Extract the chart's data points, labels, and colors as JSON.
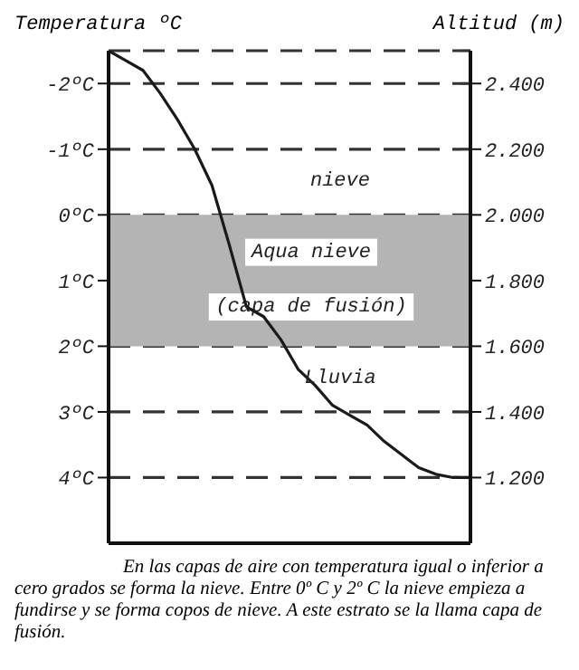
{
  "chart_data": {
    "type": "line",
    "ylabel": "Altitud (m)",
    "y2label": "Temperatura ºC",
    "categories": [
      null,
      null,
      null,
      null,
      null,
      null,
      null,
      null,
      null,
      null,
      null,
      null,
      null,
      null,
      null,
      null,
      null,
      null,
      null,
      null,
      null,
      null
    ],
    "series": [
      {
        "color": "#1a1a1a",
        "values": [
          2500,
          2470,
          2440,
          2370,
          2290,
          2200,
          2090,
          1910,
          1720,
          1690,
          1620,
          1530,
          1480,
          1420,
          1390,
          1360,
          1310,
          1270,
          1230,
          1210,
          1200,
          1200
        ]
      }
    ],
    "ylim": [
      1000,
      2500
    ],
    "yticks": [
      {
        "value": 1200,
        "label": "1.200"
      },
      {
        "value": 1400,
        "label": "1.400"
      },
      {
        "value": 1600,
        "label": "1.600"
      },
      {
        "value": 1800,
        "label": "1.800"
      },
      {
        "value": 2000,
        "label": "2.000"
      },
      {
        "value": 2200,
        "label": "2.200"
      },
      {
        "value": 2400,
        "label": "2.400"
      }
    ],
    "y2lim": [
      5,
      -2.5
    ],
    "y2ticks": [
      {
        "value": -2,
        "label": "-2ºC"
      },
      {
        "value": -1,
        "label": "-1ºC"
      },
      {
        "value": 0,
        "label": "0ºC"
      },
      {
        "value": 1,
        "label": "1ºC"
      },
      {
        "value": 2,
        "label": "2ºC"
      },
      {
        "value": 3,
        "label": "3ºC"
      },
      {
        "value": 4,
        "label": "4ºC"
      }
    ],
    "grid": "y",
    "line_style": "solid",
    "marker": "none",
    "bands": [
      {
        "axis": "y",
        "from": 1600,
        "to": 2000,
        "label": "Aqua nieve\n(capa de fusión)",
        "color": "#b4b4b4"
      }
    ],
    "annotations": [
      "nieve",
      "Lluvia",
      "En las capas de aire con temperatura igual o inferior a cero grados se forma la nieve. Entre 0º C y 2º C la nieve empieza a fundirse y se forma copos de nieve. A este estrato se la llama capa de fusión."
    ]
  }
}
